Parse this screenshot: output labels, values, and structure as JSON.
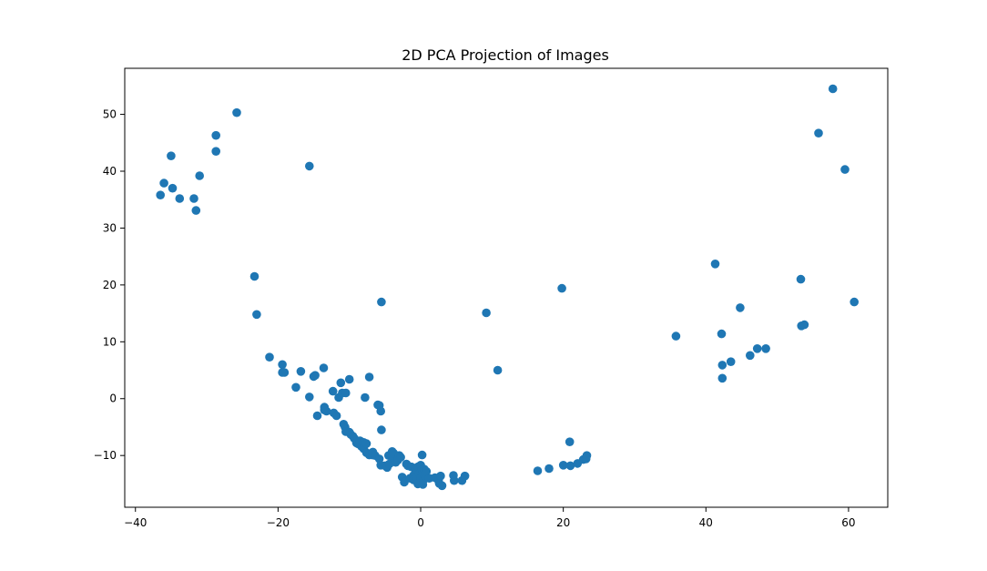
{
  "chart_data": {
    "type": "scatter",
    "title": "2D PCA Projection of Images",
    "xlabel": "",
    "ylabel": "",
    "xlim": [
      -41.5,
      65.5
    ],
    "ylim": [
      -19.1,
      58.1
    ],
    "xticks": [
      -40,
      -20,
      0,
      20,
      40,
      60
    ],
    "yticks": [
      -10,
      0,
      10,
      20,
      30,
      40,
      50
    ],
    "grid": false,
    "color": "#1f77b4",
    "points": [
      [
        -36.5,
        35.8
      ],
      [
        -36.0,
        37.9
      ],
      [
        -35.0,
        42.7
      ],
      [
        -34.8,
        37.0
      ],
      [
        -33.8,
        35.2
      ],
      [
        -31.8,
        35.2
      ],
      [
        -31.5,
        33.1
      ],
      [
        -31.0,
        39.2
      ],
      [
        -28.7,
        46.3
      ],
      [
        -28.7,
        43.5
      ],
      [
        -25.8,
        50.3
      ],
      [
        -15.6,
        40.9
      ],
      [
        -23.3,
        21.5
      ],
      [
        -23.0,
        14.8
      ],
      [
        -21.2,
        7.3
      ],
      [
        -19.4,
        6.0
      ],
      [
        -19.4,
        4.6
      ],
      [
        -19.1,
        4.6
      ],
      [
        -17.5,
        2.0
      ],
      [
        -16.8,
        4.8
      ],
      [
        -15.6,
        0.3
      ],
      [
        -15.0,
        3.9
      ],
      [
        -14.8,
        4.1
      ],
      [
        -14.5,
        -3.0
      ],
      [
        -13.6,
        5.4
      ],
      [
        -13.5,
        -1.5
      ],
      [
        -13.2,
        -2.2
      ],
      [
        -13.5,
        -2.0
      ],
      [
        -12.3,
        1.3
      ],
      [
        -12.2,
        -2.5
      ],
      [
        -11.8,
        -3.0
      ],
      [
        -11.5,
        0.2
      ],
      [
        -11.2,
        2.8
      ],
      [
        -11.0,
        1.0
      ],
      [
        -10.5,
        1.0
      ],
      [
        -10.8,
        -4.5
      ],
      [
        -10.6,
        -5.0
      ],
      [
        -10.5,
        -5.8
      ],
      [
        -10.0,
        3.4
      ],
      [
        -10.0,
        -5.9
      ],
      [
        -9.8,
        -6.3
      ],
      [
        -9.5,
        -6.6
      ],
      [
        -9.3,
        -7.0
      ],
      [
        -9.0,
        -7.8
      ],
      [
        -8.7,
        -8.0
      ],
      [
        -8.5,
        -7.4
      ],
      [
        -8.3,
        -8.4
      ],
      [
        -8.0,
        -8.8
      ],
      [
        -8.0,
        -7.7
      ],
      [
        -7.8,
        0.2
      ],
      [
        -7.6,
        -9.5
      ],
      [
        -7.6,
        -7.9
      ],
      [
        -7.2,
        3.8
      ],
      [
        -7.2,
        -9.9
      ],
      [
        -6.8,
        -9.9
      ],
      [
        -6.7,
        -9.4
      ],
      [
        -6.4,
        -10.0
      ],
      [
        -6.0,
        -1.1
      ],
      [
        -5.8,
        -1.2
      ],
      [
        -5.8,
        -10.6
      ],
      [
        -5.6,
        -11.7
      ],
      [
        -5.6,
        -2.2
      ],
      [
        -5.5,
        -5.5
      ],
      [
        -5.5,
        17.0
      ],
      [
        -5.0,
        -11.8
      ],
      [
        -4.7,
        -12.1
      ],
      [
        -4.5,
        -10.0
      ],
      [
        -4.4,
        -11.5
      ],
      [
        -4.0,
        -10.2
      ],
      [
        -4.0,
        -9.3
      ],
      [
        -3.8,
        -9.6
      ],
      [
        -3.5,
        -11.2
      ],
      [
        -3.2,
        -10.8
      ],
      [
        -3.0,
        -10.0
      ],
      [
        -2.8,
        -10.3
      ],
      [
        -2.6,
        -13.8
      ],
      [
        -2.3,
        -14.7
      ],
      [
        -2.0,
        -11.5
      ],
      [
        -1.8,
        -11.8
      ],
      [
        -1.5,
        -14.0
      ],
      [
        -1.3,
        -12.0
      ],
      [
        -1.0,
        -13.5
      ],
      [
        -1.0,
        -14.3
      ],
      [
        -0.8,
        -12.4
      ],
      [
        -0.6,
        -13.8
      ],
      [
        -0.4,
        -15.0
      ],
      [
        -0.4,
        -12.0
      ],
      [
        -0.2,
        -13.2
      ],
      [
        0.0,
        -13.9
      ],
      [
        0.0,
        -11.7
      ],
      [
        0.2,
        -12.5
      ],
      [
        0.2,
        -9.9
      ],
      [
        0.3,
        -15.1
      ],
      [
        0.4,
        -14.3
      ],
      [
        0.5,
        -12.4
      ],
      [
        0.6,
        -13.6
      ],
      [
        0.8,
        -13.8
      ],
      [
        0.8,
        -12.8
      ],
      [
        1.2,
        -14.0
      ],
      [
        2.0,
        -13.9
      ],
      [
        2.5,
        -14.4
      ],
      [
        2.6,
        -14.9
      ],
      [
        2.8,
        -13.6
      ],
      [
        3.0,
        -15.3
      ],
      [
        4.6,
        -13.5
      ],
      [
        4.7,
        -14.4
      ],
      [
        5.8,
        -14.4
      ],
      [
        6.2,
        -13.6
      ],
      [
        9.2,
        15.1
      ],
      [
        10.8,
        5.0
      ],
      [
        16.4,
        -12.7
      ],
      [
        18.0,
        -12.3
      ],
      [
        19.8,
        19.4
      ],
      [
        20.0,
        -11.7
      ],
      [
        20.9,
        -7.6
      ],
      [
        21.0,
        -11.8
      ],
      [
        22.0,
        -11.4
      ],
      [
        22.8,
        -10.7
      ],
      [
        23.3,
        -10.0
      ],
      [
        23.2,
        -10.6
      ],
      [
        35.8,
        11.0
      ],
      [
        41.3,
        23.7
      ],
      [
        42.2,
        11.4
      ],
      [
        42.3,
        5.9
      ],
      [
        42.3,
        3.6
      ],
      [
        43.5,
        6.5
      ],
      [
        44.8,
        16.0
      ],
      [
        46.2,
        7.6
      ],
      [
        47.2,
        8.8
      ],
      [
        48.4,
        8.8
      ],
      [
        53.3,
        21.0
      ],
      [
        53.4,
        12.8
      ],
      [
        53.8,
        13.0
      ],
      [
        55.8,
        46.7
      ],
      [
        57.8,
        54.5
      ],
      [
        59.5,
        40.3
      ],
      [
        60.8,
        17.0
      ]
    ]
  }
}
